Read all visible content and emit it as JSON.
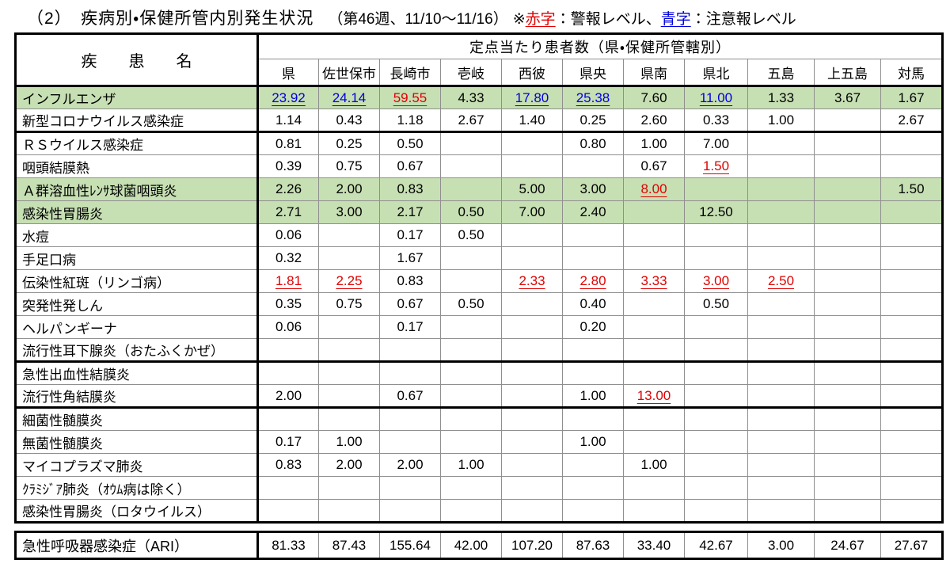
{
  "page": {
    "title": "（2）　疾病別・保健所管内別発生状況",
    "period": "（第46週、11/10～11/16）",
    "legend": {
      "prefix": "※",
      "red_label": "赤字",
      "red_suffix": "：警報レベル、",
      "blue_label": "青字",
      "blue_suffix": "：注意報レベル"
    }
  },
  "colors": {
    "alert_red": "#e00000",
    "caution_blue": "#0000dd",
    "highlight_green": "#c6dfb3"
  },
  "table": {
    "corner_header": "疾　　患　　名",
    "group_header": "定点当たり患者数（県・保健所管轄別）",
    "columns": [
      "県",
      "佐世保市",
      "長崎市",
      "壱岐",
      "西彼",
      "県央",
      "県南",
      "県北",
      "五島",
      "上五島",
      "対馬"
    ],
    "rows": [
      {
        "name": "インフルエンザ",
        "highlight": true,
        "thick_top": false,
        "values": [
          [
            "23.92",
            "blue"
          ],
          [
            "24.14",
            "blue"
          ],
          [
            "59.55",
            "red"
          ],
          [
            "4.33",
            ""
          ],
          [
            "17.80",
            "blue"
          ],
          [
            "25.38",
            "blue"
          ],
          [
            "7.60",
            ""
          ],
          [
            "11.00",
            "blue"
          ],
          [
            "1.33",
            ""
          ],
          [
            "3.67",
            ""
          ],
          [
            "1.67",
            ""
          ]
        ]
      },
      {
        "name": "新型コロナウイルス感染症",
        "highlight": false,
        "thick_top": false,
        "values": [
          [
            "1.14",
            ""
          ],
          [
            "0.43",
            ""
          ],
          [
            "1.18",
            ""
          ],
          [
            "2.67",
            ""
          ],
          [
            "1.40",
            ""
          ],
          [
            "0.25",
            ""
          ],
          [
            "2.60",
            ""
          ],
          [
            "0.33",
            ""
          ],
          [
            "1.00",
            ""
          ],
          [
            "",
            ""
          ],
          [
            "2.67",
            ""
          ]
        ]
      },
      {
        "name": "ＲＳウイルス感染症",
        "highlight": false,
        "thick_top": true,
        "values": [
          [
            "0.81",
            ""
          ],
          [
            "0.25",
            ""
          ],
          [
            "0.50",
            ""
          ],
          [
            "",
            ""
          ],
          [
            "",
            ""
          ],
          [
            "0.80",
            ""
          ],
          [
            "1.00",
            ""
          ],
          [
            "7.00",
            ""
          ],
          [
            "",
            ""
          ],
          [
            "",
            ""
          ],
          [
            "",
            ""
          ]
        ]
      },
      {
        "name": "咽頭結膜熱",
        "highlight": false,
        "thick_top": false,
        "values": [
          [
            "0.39",
            ""
          ],
          [
            "0.75",
            ""
          ],
          [
            "0.67",
            ""
          ],
          [
            "",
            ""
          ],
          [
            "",
            ""
          ],
          [
            "",
            ""
          ],
          [
            "0.67",
            ""
          ],
          [
            "1.50",
            "red"
          ],
          [
            "",
            ""
          ],
          [
            "",
            ""
          ],
          [
            "",
            ""
          ]
        ]
      },
      {
        "name": "Ａ群溶血性ﾚﾝｻ球菌咽頭炎",
        "highlight": true,
        "thick_top": false,
        "values": [
          [
            "2.26",
            ""
          ],
          [
            "2.00",
            ""
          ],
          [
            "0.83",
            ""
          ],
          [
            "",
            ""
          ],
          [
            "5.00",
            ""
          ],
          [
            "3.00",
            ""
          ],
          [
            "8.00",
            "red"
          ],
          [
            "",
            ""
          ],
          [
            "",
            ""
          ],
          [
            "",
            ""
          ],
          [
            "1.50",
            ""
          ]
        ]
      },
      {
        "name": "感染性胃腸炎",
        "highlight": true,
        "thick_top": false,
        "values": [
          [
            "2.71",
            ""
          ],
          [
            "3.00",
            ""
          ],
          [
            "2.17",
            ""
          ],
          [
            "0.50",
            ""
          ],
          [
            "7.00",
            ""
          ],
          [
            "2.40",
            ""
          ],
          [
            "",
            ""
          ],
          [
            "12.50",
            ""
          ],
          [
            "",
            ""
          ],
          [
            "",
            ""
          ],
          [
            "",
            ""
          ]
        ]
      },
      {
        "name": "水痘",
        "highlight": false,
        "thick_top": false,
        "values": [
          [
            "0.06",
            ""
          ],
          [
            "",
            ""
          ],
          [
            "0.17",
            ""
          ],
          [
            "0.50",
            ""
          ],
          [
            "",
            ""
          ],
          [
            "",
            ""
          ],
          [
            "",
            ""
          ],
          [
            "",
            ""
          ],
          [
            "",
            ""
          ],
          [
            "",
            ""
          ],
          [
            "",
            ""
          ]
        ]
      },
      {
        "name": "手足口病",
        "highlight": false,
        "thick_top": false,
        "values": [
          [
            "0.32",
            ""
          ],
          [
            "",
            ""
          ],
          [
            "1.67",
            ""
          ],
          [
            "",
            ""
          ],
          [
            "",
            ""
          ],
          [
            "",
            ""
          ],
          [
            "",
            ""
          ],
          [
            "",
            ""
          ],
          [
            "",
            ""
          ],
          [
            "",
            ""
          ],
          [
            "",
            ""
          ]
        ]
      },
      {
        "name": "伝染性紅斑（リンゴ病）",
        "highlight": false,
        "thick_top": false,
        "values": [
          [
            "1.81",
            "red"
          ],
          [
            "2.25",
            "red"
          ],
          [
            "0.83",
            ""
          ],
          [
            "",
            ""
          ],
          [
            "2.33",
            "red"
          ],
          [
            "2.80",
            "red"
          ],
          [
            "3.33",
            "red"
          ],
          [
            "3.00",
            "red"
          ],
          [
            "2.50",
            "red"
          ],
          [
            "",
            ""
          ],
          [
            "",
            ""
          ]
        ]
      },
      {
        "name": "突発性発しん",
        "highlight": false,
        "thick_top": false,
        "values": [
          [
            "0.35",
            ""
          ],
          [
            "0.75",
            ""
          ],
          [
            "0.67",
            ""
          ],
          [
            "0.50",
            ""
          ],
          [
            "",
            ""
          ],
          [
            "0.40",
            ""
          ],
          [
            "",
            ""
          ],
          [
            "0.50",
            ""
          ],
          [
            "",
            ""
          ],
          [
            "",
            ""
          ],
          [
            "",
            ""
          ]
        ]
      },
      {
        "name": "ヘルパンギーナ",
        "highlight": false,
        "thick_top": false,
        "values": [
          [
            "0.06",
            ""
          ],
          [
            "",
            ""
          ],
          [
            "0.17",
            ""
          ],
          [
            "",
            ""
          ],
          [
            "",
            ""
          ],
          [
            "0.20",
            ""
          ],
          [
            "",
            ""
          ],
          [
            "",
            ""
          ],
          [
            "",
            ""
          ],
          [
            "",
            ""
          ],
          [
            "",
            ""
          ]
        ]
      },
      {
        "name": "流行性耳下腺炎（おたふくかぜ）",
        "highlight": false,
        "thick_top": false,
        "values": [
          [
            "",
            ""
          ],
          [
            "",
            ""
          ],
          [
            "",
            ""
          ],
          [
            "",
            ""
          ],
          [
            "",
            ""
          ],
          [
            "",
            ""
          ],
          [
            "",
            ""
          ],
          [
            "",
            ""
          ],
          [
            "",
            ""
          ],
          [
            "",
            ""
          ],
          [
            "",
            ""
          ]
        ]
      },
      {
        "name": "急性出血性結膜炎",
        "highlight": false,
        "thick_top": true,
        "values": [
          [
            "",
            ""
          ],
          [
            "",
            ""
          ],
          [
            "",
            ""
          ],
          [
            "",
            ""
          ],
          [
            "",
            ""
          ],
          [
            "",
            ""
          ],
          [
            "",
            ""
          ],
          [
            "",
            ""
          ],
          [
            "",
            ""
          ],
          [
            "",
            ""
          ],
          [
            "",
            ""
          ]
        ]
      },
      {
        "name": "流行性角結膜炎",
        "highlight": false,
        "thick_top": false,
        "values": [
          [
            "2.00",
            ""
          ],
          [
            "",
            ""
          ],
          [
            "0.67",
            ""
          ],
          [
            "",
            ""
          ],
          [
            "",
            ""
          ],
          [
            "1.00",
            ""
          ],
          [
            "13.00",
            "red"
          ],
          [
            "",
            ""
          ],
          [
            "",
            ""
          ],
          [
            "",
            ""
          ],
          [
            "",
            ""
          ]
        ]
      },
      {
        "name": "細菌性髄膜炎",
        "highlight": false,
        "thick_top": true,
        "values": [
          [
            "",
            ""
          ],
          [
            "",
            ""
          ],
          [
            "",
            ""
          ],
          [
            "",
            ""
          ],
          [
            "",
            ""
          ],
          [
            "",
            ""
          ],
          [
            "",
            ""
          ],
          [
            "",
            ""
          ],
          [
            "",
            ""
          ],
          [
            "",
            ""
          ],
          [
            "",
            ""
          ]
        ]
      },
      {
        "name": "無菌性髄膜炎",
        "highlight": false,
        "thick_top": false,
        "values": [
          [
            "0.17",
            ""
          ],
          [
            "1.00",
            ""
          ],
          [
            "",
            ""
          ],
          [
            "",
            ""
          ],
          [
            "",
            ""
          ],
          [
            "1.00",
            ""
          ],
          [
            "",
            ""
          ],
          [
            "",
            ""
          ],
          [
            "",
            ""
          ],
          [
            "",
            ""
          ],
          [
            "",
            ""
          ]
        ]
      },
      {
        "name": "マイコプラズマ肺炎",
        "highlight": false,
        "thick_top": false,
        "values": [
          [
            "0.83",
            ""
          ],
          [
            "2.00",
            ""
          ],
          [
            "2.00",
            ""
          ],
          [
            "1.00",
            ""
          ],
          [
            "",
            ""
          ],
          [
            "",
            ""
          ],
          [
            "1.00",
            ""
          ],
          [
            "",
            ""
          ],
          [
            "",
            ""
          ],
          [
            "",
            ""
          ],
          [
            "",
            ""
          ]
        ]
      },
      {
        "name": "ｸﾗﾐｼﾞｱ肺炎（ｵｳﾑ病は除く）",
        "highlight": false,
        "thick_top": false,
        "values": [
          [
            "",
            ""
          ],
          [
            "",
            ""
          ],
          [
            "",
            ""
          ],
          [
            "",
            ""
          ],
          [
            "",
            ""
          ],
          [
            "",
            ""
          ],
          [
            "",
            ""
          ],
          [
            "",
            ""
          ],
          [
            "",
            ""
          ],
          [
            "",
            ""
          ],
          [
            "",
            ""
          ]
        ]
      },
      {
        "name": "感染性胃腸炎（ロタウイルス）",
        "highlight": false,
        "thick_top": false,
        "values": [
          [
            "",
            ""
          ],
          [
            "",
            ""
          ],
          [
            "",
            ""
          ],
          [
            "",
            ""
          ],
          [
            "",
            ""
          ],
          [
            "",
            ""
          ],
          [
            "",
            ""
          ],
          [
            "",
            ""
          ],
          [
            "",
            ""
          ],
          [
            "",
            ""
          ],
          [
            "",
            ""
          ]
        ]
      }
    ]
  },
  "ari": {
    "name": "急性呼吸器感染症（ARI）",
    "values": [
      [
        "81.33",
        ""
      ],
      [
        "87.43",
        ""
      ],
      [
        "155.64",
        ""
      ],
      [
        "42.00",
        ""
      ],
      [
        "107.20",
        ""
      ],
      [
        "87.63",
        ""
      ],
      [
        "33.40",
        ""
      ],
      [
        "42.67",
        ""
      ],
      [
        "3.00",
        ""
      ],
      [
        "24.67",
        ""
      ],
      [
        "27.67",
        ""
      ]
    ]
  }
}
